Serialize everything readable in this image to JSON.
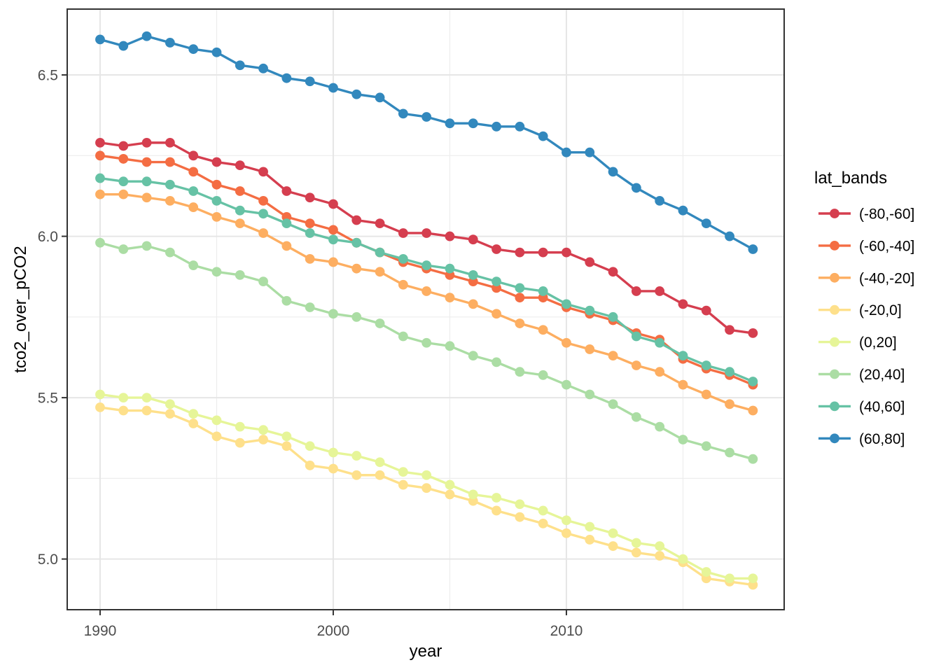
{
  "chart_data": {
    "type": "line",
    "title": "",
    "xlabel": "year",
    "ylabel": "tco2_over_pCO2",
    "legend_title": "lat_bands",
    "legend_position": "right",
    "grid": true,
    "background": "#ffffff",
    "xlim": [
      1988.59,
      2019.34
    ],
    "ylim": [
      4.843,
      6.704
    ],
    "x_ticks": [
      {
        "value": 1990,
        "label": "1990"
      },
      {
        "value": 2000,
        "label": "2000"
      },
      {
        "value": 2010,
        "label": "2010"
      }
    ],
    "y_ticks": [
      {
        "value": 5.0,
        "label": "5.0"
      },
      {
        "value": 5.5,
        "label": "5.5"
      },
      {
        "value": 6.0,
        "label": "6.0"
      },
      {
        "value": 6.5,
        "label": "6.5"
      }
    ],
    "x_minor": [
      1995,
      2005,
      2015
    ],
    "y_minor": [
      5.25,
      5.75,
      6.25
    ],
    "x": [
      1990,
      1991,
      1992,
      1993,
      1994,
      1995,
      1996,
      1997,
      1998,
      1999,
      2000,
      2001,
      2002,
      2003,
      2004,
      2005,
      2006,
      2007,
      2008,
      2009,
      2010,
      2011,
      2012,
      2013,
      2014,
      2015,
      2016,
      2017,
      2018
    ],
    "series": [
      {
        "name": "(-80,-60]",
        "color": "#d53e4f",
        "values": [
          6.29,
          6.28,
          6.29,
          6.29,
          6.25,
          6.23,
          6.22,
          6.2,
          6.14,
          6.12,
          6.1,
          6.05,
          6.04,
          6.01,
          6.01,
          6.0,
          5.99,
          5.96,
          5.95,
          5.95,
          5.95,
          5.92,
          5.89,
          5.83,
          5.83,
          5.79,
          5.77,
          5.71,
          5.7
        ]
      },
      {
        "name": "(-60,-40]",
        "color": "#f46d43",
        "values": [
          6.25,
          6.24,
          6.23,
          6.23,
          6.2,
          6.16,
          6.14,
          6.11,
          6.06,
          6.04,
          6.02,
          5.98,
          5.95,
          5.92,
          5.9,
          5.88,
          5.86,
          5.84,
          5.81,
          5.81,
          5.78,
          5.76,
          5.74,
          5.7,
          5.68,
          5.62,
          5.59,
          5.57,
          5.54
        ]
      },
      {
        "name": "(-40,-20]",
        "color": "#fdae61",
        "values": [
          6.13,
          6.13,
          6.12,
          6.11,
          6.09,
          6.06,
          6.04,
          6.01,
          5.97,
          5.93,
          5.92,
          5.9,
          5.89,
          5.85,
          5.83,
          5.81,
          5.79,
          5.76,
          5.73,
          5.71,
          5.67,
          5.65,
          5.63,
          5.6,
          5.58,
          5.54,
          5.51,
          5.48,
          5.46
        ]
      },
      {
        "name": "(-20,0]",
        "color": "#fee08b",
        "values": [
          5.47,
          5.46,
          5.46,
          5.45,
          5.42,
          5.38,
          5.36,
          5.37,
          5.35,
          5.29,
          5.28,
          5.26,
          5.26,
          5.23,
          5.22,
          5.2,
          5.18,
          5.15,
          5.13,
          5.11,
          5.08,
          5.06,
          5.04,
          5.02,
          5.01,
          4.99,
          4.94,
          4.93,
          4.92
        ]
      },
      {
        "name": "(0,20]",
        "color": "#e6f598",
        "values": [
          5.51,
          5.5,
          5.5,
          5.48,
          5.45,
          5.43,
          5.41,
          5.4,
          5.38,
          5.35,
          5.33,
          5.32,
          5.3,
          5.27,
          5.26,
          5.23,
          5.2,
          5.19,
          5.17,
          5.15,
          5.12,
          5.1,
          5.08,
          5.05,
          5.04,
          5.0,
          4.96,
          4.94,
          4.94
        ]
      },
      {
        "name": "(20,40]",
        "color": "#abdda4",
        "values": [
          5.98,
          5.96,
          5.97,
          5.95,
          5.91,
          5.89,
          5.88,
          5.86,
          5.8,
          5.78,
          5.76,
          5.75,
          5.73,
          5.69,
          5.67,
          5.66,
          5.63,
          5.61,
          5.58,
          5.57,
          5.54,
          5.51,
          5.48,
          5.44,
          5.41,
          5.37,
          5.35,
          5.33,
          5.31
        ]
      },
      {
        "name": "(40,60]",
        "color": "#66c2a5",
        "values": [
          6.18,
          6.17,
          6.17,
          6.16,
          6.14,
          6.11,
          6.08,
          6.07,
          6.04,
          6.01,
          5.99,
          5.98,
          5.95,
          5.93,
          5.91,
          5.9,
          5.88,
          5.86,
          5.84,
          5.83,
          5.79,
          5.77,
          5.75,
          5.69,
          5.67,
          5.63,
          5.6,
          5.58,
          5.55
        ]
      },
      {
        "name": "(60,80]",
        "color": "#3288bd",
        "values": [
          6.61,
          6.59,
          6.62,
          6.6,
          6.58,
          6.57,
          6.53,
          6.52,
          6.49,
          6.48,
          6.46,
          6.44,
          6.43,
          6.38,
          6.37,
          6.35,
          6.35,
          6.34,
          6.34,
          6.31,
          6.26,
          6.26,
          6.2,
          6.15,
          6.11,
          6.08,
          6.04,
          6.0,
          5.96
        ]
      }
    ]
  },
  "theme": {
    "panel_border": "#333333",
    "grid_major": "#e6e6e6",
    "grid_minor": "#ededed",
    "tick_color": "#333333",
    "tick_label_color": "#4d4d4d",
    "axis_title_color": "#000000"
  }
}
